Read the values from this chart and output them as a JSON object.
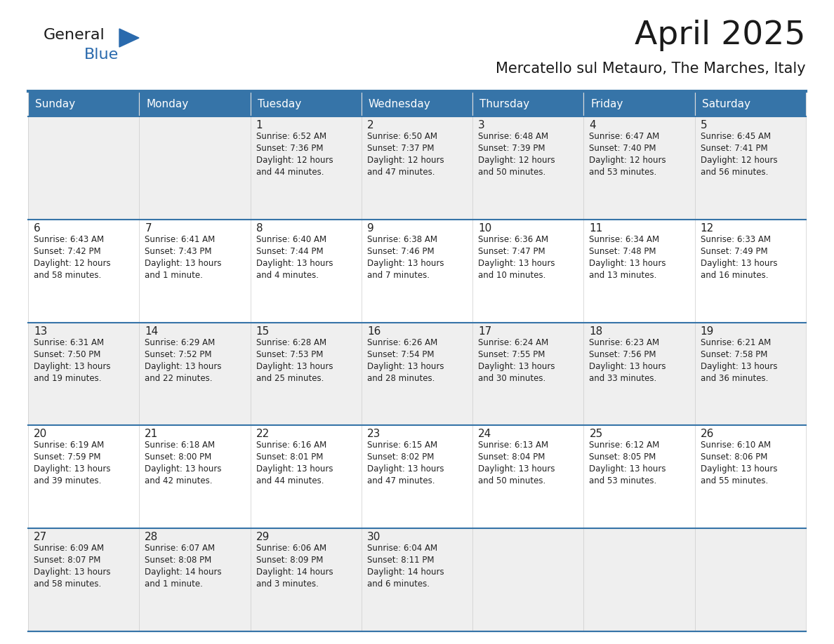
{
  "title": "April 2025",
  "subtitle": "Mercatello sul Metauro, The Marches, Italy",
  "header_color": "#3674A8",
  "header_text_color": "#FFFFFF",
  "row_bg": [
    "#EFEFEF",
    "#FFFFFF",
    "#EFEFEF",
    "#FFFFFF",
    "#EFEFEF"
  ],
  "day_names": [
    "Sunday",
    "Monday",
    "Tuesday",
    "Wednesday",
    "Thursday",
    "Friday",
    "Saturday"
  ],
  "weeks": [
    [
      {
        "day": "",
        "info": ""
      },
      {
        "day": "",
        "info": ""
      },
      {
        "day": "1",
        "info": "Sunrise: 6:52 AM\nSunset: 7:36 PM\nDaylight: 12 hours\nand 44 minutes."
      },
      {
        "day": "2",
        "info": "Sunrise: 6:50 AM\nSunset: 7:37 PM\nDaylight: 12 hours\nand 47 minutes."
      },
      {
        "day": "3",
        "info": "Sunrise: 6:48 AM\nSunset: 7:39 PM\nDaylight: 12 hours\nand 50 minutes."
      },
      {
        "day": "4",
        "info": "Sunrise: 6:47 AM\nSunset: 7:40 PM\nDaylight: 12 hours\nand 53 minutes."
      },
      {
        "day": "5",
        "info": "Sunrise: 6:45 AM\nSunset: 7:41 PM\nDaylight: 12 hours\nand 56 minutes."
      }
    ],
    [
      {
        "day": "6",
        "info": "Sunrise: 6:43 AM\nSunset: 7:42 PM\nDaylight: 12 hours\nand 58 minutes."
      },
      {
        "day": "7",
        "info": "Sunrise: 6:41 AM\nSunset: 7:43 PM\nDaylight: 13 hours\nand 1 minute."
      },
      {
        "day": "8",
        "info": "Sunrise: 6:40 AM\nSunset: 7:44 PM\nDaylight: 13 hours\nand 4 minutes."
      },
      {
        "day": "9",
        "info": "Sunrise: 6:38 AM\nSunset: 7:46 PM\nDaylight: 13 hours\nand 7 minutes."
      },
      {
        "day": "10",
        "info": "Sunrise: 6:36 AM\nSunset: 7:47 PM\nDaylight: 13 hours\nand 10 minutes."
      },
      {
        "day": "11",
        "info": "Sunrise: 6:34 AM\nSunset: 7:48 PM\nDaylight: 13 hours\nand 13 minutes."
      },
      {
        "day": "12",
        "info": "Sunrise: 6:33 AM\nSunset: 7:49 PM\nDaylight: 13 hours\nand 16 minutes."
      }
    ],
    [
      {
        "day": "13",
        "info": "Sunrise: 6:31 AM\nSunset: 7:50 PM\nDaylight: 13 hours\nand 19 minutes."
      },
      {
        "day": "14",
        "info": "Sunrise: 6:29 AM\nSunset: 7:52 PM\nDaylight: 13 hours\nand 22 minutes."
      },
      {
        "day": "15",
        "info": "Sunrise: 6:28 AM\nSunset: 7:53 PM\nDaylight: 13 hours\nand 25 minutes."
      },
      {
        "day": "16",
        "info": "Sunrise: 6:26 AM\nSunset: 7:54 PM\nDaylight: 13 hours\nand 28 minutes."
      },
      {
        "day": "17",
        "info": "Sunrise: 6:24 AM\nSunset: 7:55 PM\nDaylight: 13 hours\nand 30 minutes."
      },
      {
        "day": "18",
        "info": "Sunrise: 6:23 AM\nSunset: 7:56 PM\nDaylight: 13 hours\nand 33 minutes."
      },
      {
        "day": "19",
        "info": "Sunrise: 6:21 AM\nSunset: 7:58 PM\nDaylight: 13 hours\nand 36 minutes."
      }
    ],
    [
      {
        "day": "20",
        "info": "Sunrise: 6:19 AM\nSunset: 7:59 PM\nDaylight: 13 hours\nand 39 minutes."
      },
      {
        "day": "21",
        "info": "Sunrise: 6:18 AM\nSunset: 8:00 PM\nDaylight: 13 hours\nand 42 minutes."
      },
      {
        "day": "22",
        "info": "Sunrise: 6:16 AM\nSunset: 8:01 PM\nDaylight: 13 hours\nand 44 minutes."
      },
      {
        "day": "23",
        "info": "Sunrise: 6:15 AM\nSunset: 8:02 PM\nDaylight: 13 hours\nand 47 minutes."
      },
      {
        "day": "24",
        "info": "Sunrise: 6:13 AM\nSunset: 8:04 PM\nDaylight: 13 hours\nand 50 minutes."
      },
      {
        "day": "25",
        "info": "Sunrise: 6:12 AM\nSunset: 8:05 PM\nDaylight: 13 hours\nand 53 minutes."
      },
      {
        "day": "26",
        "info": "Sunrise: 6:10 AM\nSunset: 8:06 PM\nDaylight: 13 hours\nand 55 minutes."
      }
    ],
    [
      {
        "day": "27",
        "info": "Sunrise: 6:09 AM\nSunset: 8:07 PM\nDaylight: 13 hours\nand 58 minutes."
      },
      {
        "day": "28",
        "info": "Sunrise: 6:07 AM\nSunset: 8:08 PM\nDaylight: 14 hours\nand 1 minute."
      },
      {
        "day": "29",
        "info": "Sunrise: 6:06 AM\nSunset: 8:09 PM\nDaylight: 14 hours\nand 3 minutes."
      },
      {
        "day": "30",
        "info": "Sunrise: 6:04 AM\nSunset: 8:11 PM\nDaylight: 14 hours\nand 6 minutes."
      },
      {
        "day": "",
        "info": ""
      },
      {
        "day": "",
        "info": ""
      },
      {
        "day": "",
        "info": ""
      }
    ]
  ],
  "logo_general_color": "#1a1a1a",
  "logo_blue_color": "#2a6aad",
  "logo_triangle_color": "#2a6aad",
  "title_color": "#1a1a1a",
  "subtitle_color": "#1a1a1a",
  "separator_line_color": "#3674A8",
  "cell_text_color": "#222222",
  "cell_day_fontsize": 11,
  "cell_info_fontsize": 8.5,
  "header_fontsize": 11,
  "title_fontsize": 34,
  "subtitle_fontsize": 15
}
